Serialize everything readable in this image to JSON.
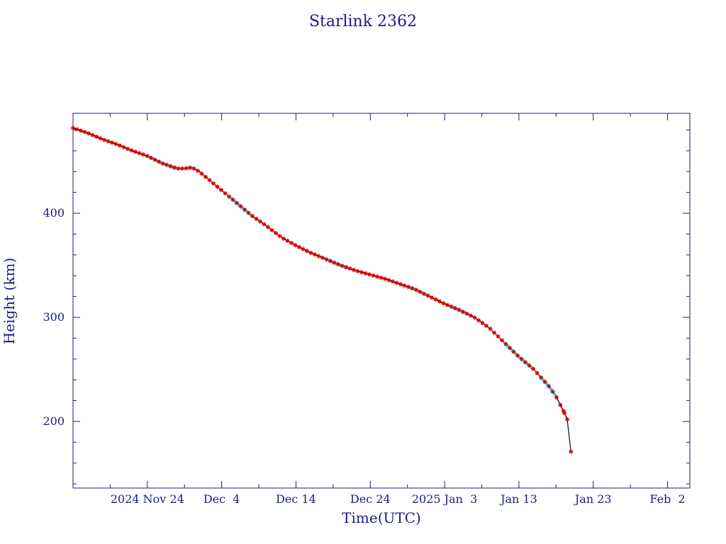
{
  "colors": {
    "axis": "#1a1a8c",
    "text": "#1a1a8c",
    "curve": "#000033",
    "tle_marker": "#dd0000",
    "obs_marker": "#00e5ee"
  },
  "chart_data": {
    "type": "line",
    "title": "Starlink 2362",
    "xlabel": "Time(UTC)",
    "ylabel": "Height (km)",
    "x_type": "date",
    "xlim": [
      "2024-11-14",
      "2025-02-05"
    ],
    "ylim": [
      136,
      496
    ],
    "x_tick_labels": [
      {
        "date": "2024-11-24",
        "label": "2024 Nov 24"
      },
      {
        "date": "2024-12-04",
        "label": "Dec  4"
      },
      {
        "date": "2024-12-14",
        "label": "Dec 14"
      },
      {
        "date": "2024-12-24",
        "label": "Dec 24"
      },
      {
        "date": "2025-01-03",
        "label": "2025 Jan  3"
      },
      {
        "date": "2025-01-13",
        "label": "Jan 13"
      },
      {
        "date": "2025-01-23",
        "label": "Jan 23"
      },
      {
        "date": "2025-02-02",
        "label": "Feb  2"
      }
    ],
    "y_tick_labels": [
      {
        "value": 200,
        "label": "200"
      },
      {
        "value": 300,
        "label": "300"
      },
      {
        "value": 400,
        "label": "400"
      }
    ],
    "grid": false,
    "series": [
      {
        "points": [
          [
            "2024-11-14",
            482
          ],
          [
            "2024-11-16",
            477
          ],
          [
            "2024-11-18",
            471
          ],
          [
            "2024-11-20",
            466
          ],
          [
            "2024-11-22",
            460
          ],
          [
            "2024-11-24",
            455
          ],
          [
            "2024-11-26",
            448
          ],
          [
            "2024-11-28",
            443
          ],
          [
            "2024-11-29",
            443
          ],
          [
            "2024-11-30",
            444
          ],
          [
            "2024-12-01",
            440
          ],
          [
            "2024-12-02",
            434
          ],
          [
            "2024-12-04",
            422
          ],
          [
            "2024-12-06",
            410
          ],
          [
            "2024-12-08",
            398
          ],
          [
            "2024-12-10",
            388
          ],
          [
            "2024-12-12",
            377
          ],
          [
            "2024-12-14",
            369
          ],
          [
            "2024-12-16",
            362
          ],
          [
            "2024-12-18",
            356
          ],
          [
            "2024-12-20",
            350
          ],
          [
            "2024-12-22",
            345
          ],
          [
            "2024-12-24",
            341
          ],
          [
            "2024-12-26",
            337
          ],
          [
            "2024-12-28",
            332
          ],
          [
            "2024-12-30",
            327
          ],
          [
            "2025-01-01",
            320
          ],
          [
            "2025-01-03",
            313
          ],
          [
            "2025-01-05",
            307
          ],
          [
            "2025-01-07",
            300
          ],
          [
            "2025-01-09",
            290
          ],
          [
            "2025-01-11",
            276
          ],
          [
            "2025-01-13",
            262
          ],
          [
            "2025-01-15",
            250
          ],
          [
            "2025-01-16",
            242
          ],
          [
            "2025-01-17",
            234
          ],
          [
            "2025-01-18",
            224
          ],
          [
            "2025-01-19",
            210
          ],
          [
            "2025-01-19T12",
            202
          ],
          [
            "2025-01-20",
            171
          ]
        ]
      }
    ],
    "observation_ranges": [
      [
        "2024-11-24",
        "2024-11-28"
      ],
      [
        "2024-12-05",
        "2024-12-08"
      ],
      [
        "2024-12-18",
        "2024-12-21"
      ],
      [
        "2024-12-29",
        "2025-01-01"
      ],
      [
        "2025-01-04",
        "2025-01-06"
      ],
      [
        "2025-01-11",
        "2025-01-15"
      ],
      [
        "2025-01-16",
        "2025-01-18"
      ]
    ]
  }
}
